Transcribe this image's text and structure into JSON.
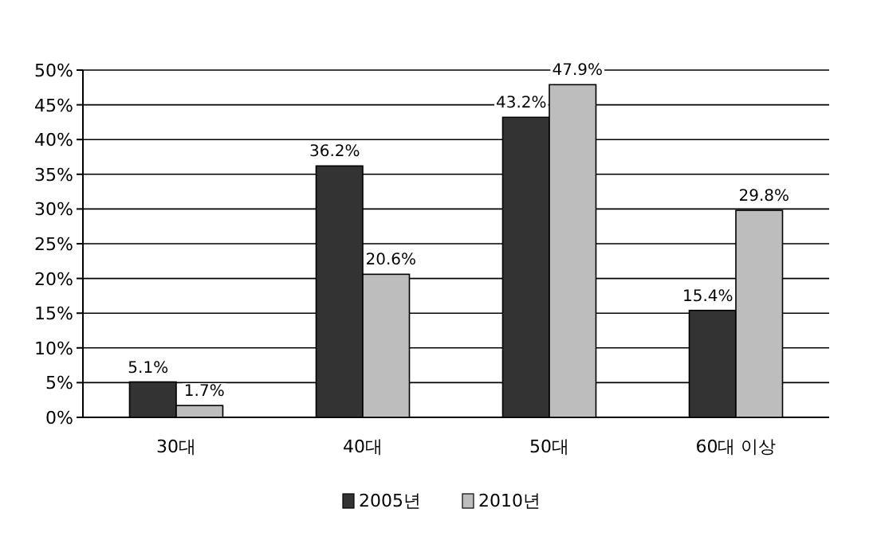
{
  "chart_data": {
    "type": "bar",
    "categories": [
      "30대",
      "40대",
      "50대",
      "60대 이상"
    ],
    "series": [
      {
        "name": "2005년",
        "color": "#333333",
        "values": [
          5.1,
          36.2,
          43.2,
          15.4
        ],
        "value_labels": [
          "5.1%",
          "36.2%",
          "43.2%",
          "15.4%"
        ]
      },
      {
        "name": "2010년",
        "color": "#bdbdbd",
        "values": [
          1.7,
          20.6,
          47.9,
          29.8
        ],
        "value_labels": [
          "1.7%",
          "20.6%",
          "47.9%",
          "29.8%"
        ]
      }
    ],
    "ylim": [
      0,
      50
    ],
    "yticks": [
      {
        "value": 0,
        "label": "0%"
      },
      {
        "value": 5,
        "label": "5%"
      },
      {
        "value": 10,
        "label": "10%"
      },
      {
        "value": 15,
        "label": "15%"
      },
      {
        "value": 20,
        "label": "20%"
      },
      {
        "value": 25,
        "label": "25%"
      },
      {
        "value": 30,
        "label": "30%"
      },
      {
        "value": 35,
        "label": "35%"
      },
      {
        "value": 40,
        "label": "40%"
      },
      {
        "value": 45,
        "label": "45%"
      },
      {
        "value": 50,
        "label": "50%"
      }
    ],
    "grid": "y",
    "legend": "bottom"
  }
}
